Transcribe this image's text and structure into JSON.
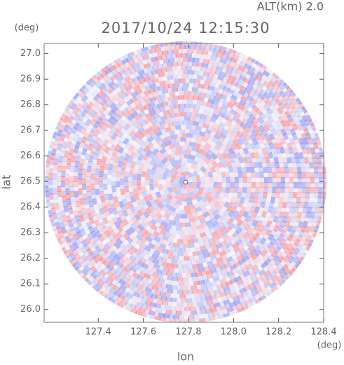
{
  "chart_data": {
    "type": "ppi",
    "title": "2017/10/24 12:15:30",
    "subtitle": "ALT(km) 2.0",
    "x_label": "lon",
    "y_label": "lat",
    "x_unit": "(deg)",
    "y_unit": "(deg)",
    "xlim": [
      127.16,
      128.4
    ],
    "ylim": [
      25.95,
      27.04
    ],
    "xticks": [
      {
        "value": 127.4,
        "label": "127.4"
      },
      {
        "value": 127.6,
        "label": "127.6"
      },
      {
        "value": 127.8,
        "label": "127.8"
      },
      {
        "value": 128.0,
        "label": "128.0"
      },
      {
        "value": 128.2,
        "label": "128.2"
      },
      {
        "value": 128.4,
        "label": "128.4"
      }
    ],
    "yticks": [
      {
        "value": 26.0,
        "label": "26.0"
      },
      {
        "value": 26.1,
        "label": "26.1"
      },
      {
        "value": 26.2,
        "label": "26.2"
      },
      {
        "value": 26.3,
        "label": "26.3"
      },
      {
        "value": 26.4,
        "label": "26.4"
      },
      {
        "value": 26.5,
        "label": "26.5"
      },
      {
        "value": 26.6,
        "label": "26.6"
      },
      {
        "value": 26.7,
        "label": "26.7"
      },
      {
        "value": 26.8,
        "label": "26.8"
      },
      {
        "value": 26.9,
        "label": "26.9"
      },
      {
        "value": 27.0,
        "label": "27.0"
      }
    ]
  }
}
